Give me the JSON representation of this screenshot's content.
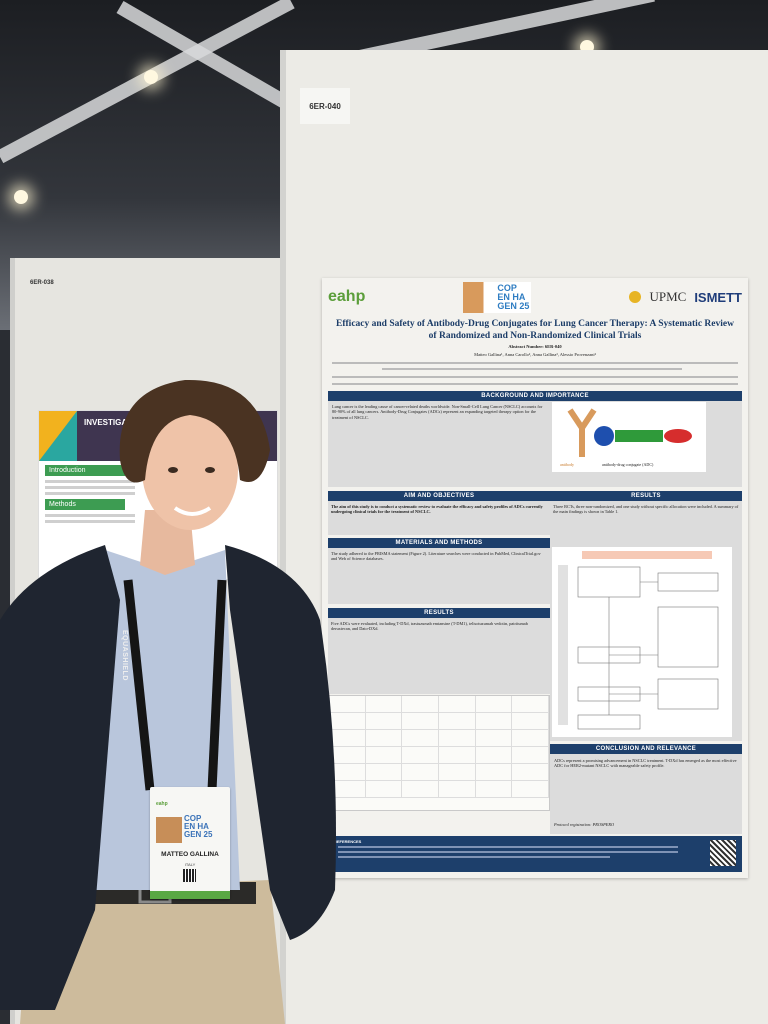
{
  "scene": {
    "board_label": "6ER-040",
    "left_board_label": "6ER-038"
  },
  "left_poster": {
    "title": "INVESTIGATING C... TREATED WITH",
    "sections": [
      "Introduction",
      "Methods"
    ]
  },
  "poster": {
    "logos": {
      "eahp": "eahp",
      "congress": [
        "COP",
        "EN HA",
        "GEN 25"
      ],
      "upmc": "UPMC",
      "ismett": "ISMETT"
    },
    "title": "Efficacy and Safety of Antibody-Drug Conjugates for Lung Cancer Therapy: A Systematic Review of Randomized and Non-Randomized Clinical Trials",
    "abstract_number": "Abstract Number: 6ER-040",
    "authors": "Matteo Gallina¹, Anna Carollo², Anna Gallina³, Alessio Provenzani²",
    "sections": {
      "background": {
        "heading": "BACKGROUND AND IMPORTANCE",
        "text": "Lung cancer is the leading cause of cancer-related deaths worldwide. Non-Small-Cell Lung Cancer (NSCLC) accounts for 80-90% of all lung cancers. Antibody-Drug Conjugates (ADCs) represent an expanding targeted therapy option for the treatment of NSCLC.",
        "figure_labels": [
          "antibody",
          "antibody-drug conjugate (ADC)"
        ]
      },
      "aim": {
        "heading": "AIM AND OBJECTIVES",
        "text": "The aim of this study is to conduct a systematic review to evaluate the efficacy and safety profiles of ADCs currently undergoing clinical trials for the treatment of NSCLC."
      },
      "methods": {
        "heading": "MATERIALS AND METHODS",
        "text": "The study adhered to the PRISMA statement (Figure 2). Literature searches were conducted in PubMed, ClinicalTrial.gov and Web of Science databases."
      },
      "results_left": {
        "heading": "RESULTS",
        "text": "Five ADCs were evaluated, including T-DXd, trastuzumab emtansine (T-DM1), telisotuzumab vedotin, patritumab deruxtecan, and Dato-DXd."
      },
      "results_right": {
        "heading": "RESULTS",
        "text": "Three RCTs, three non-randomized, and one study without specific allocation were included. A summary of the main findings is shown in Table 1."
      },
      "conclusion": {
        "heading": "CONCLUSION AND RELEVANCE",
        "text": "ADCs represent a promising advancement in NSCLC treatment. T-DXd has emerged as the most effective ADC for HER2-mutant NSCLC with manageable safety profile.",
        "protocol": "Protocol registration: PROSPERO"
      },
      "references": {
        "heading": "REFERENCES"
      }
    }
  },
  "badge": {
    "logo": "eahp",
    "congress": [
      "COP",
      "EN HA",
      "GEN 25"
    ],
    "name": "MATTEO GALLINA",
    "country": "ITALY"
  },
  "lanyard": "EQUASHIELD",
  "colors": {
    "poster_header_blue": "#1d3f6b",
    "eahp_green": "#5b9e3a",
    "jacket": "#1f2530",
    "shirt": "#b9c6dc",
    "trousers": "#cdbb9c"
  }
}
